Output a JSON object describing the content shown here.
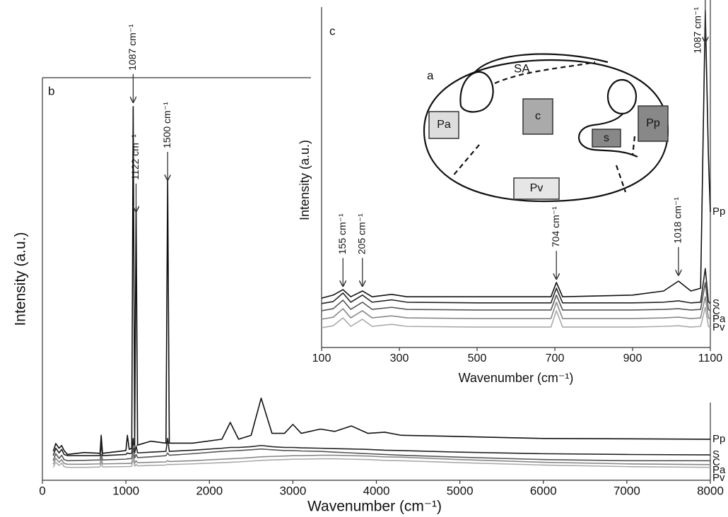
{
  "chart_data": [
    {
      "type": "line",
      "panel_label": "b",
      "x_label": "Wavenumber (cm⁻¹)",
      "y_label": "Intensity (a.u.)",
      "xlim": [
        0,
        8000
      ],
      "xticks": [
        0,
        1000,
        2000,
        3000,
        4000,
        5000,
        6000,
        7000,
        8000
      ],
      "ylim": [
        -3,
        100
      ],
      "x": [
        130,
        160,
        200,
        230,
        260,
        300,
        500,
        690,
        704,
        720,
        1000,
        1018,
        1040,
        1070,
        1087,
        1105,
        1122,
        1140,
        1300,
        1480,
        1500,
        1520,
        1800,
        2150,
        2250,
        2350,
        2500,
        2620,
        2750,
        2900,
        3000,
        3100,
        3330,
        3500,
        3700,
        3900,
        4100,
        4300,
        5000,
        6000,
        7000,
        8000
      ],
      "series": [
        {
          "name": "Pp",
          "color": "#111111",
          "values": [
            4.4,
            6.4,
            5.2,
            5.9,
            4.6,
            3.6,
            4.1,
            3.9,
            8.5,
            3.9,
            4.6,
            8.5,
            4.9,
            5.2,
            92.6,
            6,
            66.8,
            6,
            7,
            6.5,
            74.2,
            6.5,
            6.5,
            7.5,
            11.8,
            7.5,
            8.5,
            18,
            9,
            9,
            11.3,
            9,
            10.1,
            9.5,
            10.9,
            9,
            9.3,
            8.5,
            8.2,
            7.7,
            7.6,
            7.5
          ]
        },
        {
          "name": "S",
          "color": "#222222",
          "values": [
            3.3,
            5.2,
            4,
            4.9,
            3.6,
            3.3,
            3.3,
            3.3,
            6,
            3.3,
            3.6,
            4,
            3.8,
            3.9,
            7.7,
            4,
            5.8,
            4,
            4.2,
            4.4,
            7.7,
            4.4,
            4.7,
            5.2,
            5.4,
            5.4,
            5.6,
            5.9,
            5.6,
            5.4,
            5.4,
            5.3,
            5.2,
            5.1,
            5,
            4.9,
            4.7,
            4.6,
            4.2,
            3.8,
            3.6,
            3.5
          ]
        },
        {
          "name": "C",
          "color": "#555555",
          "values": [
            2,
            3.8,
            2.6,
            3.4,
            2.3,
            2,
            2.1,
            2.2,
            3.6,
            2.2,
            2.4,
            2.5,
            2.5,
            2.6,
            5.2,
            2.7,
            3.6,
            2.8,
            3,
            3.3,
            4,
            3.4,
            3.8,
            4.4,
            4.5,
            4.6,
            4.8,
            5,
            4.8,
            4.6,
            4.6,
            4.5,
            4.4,
            4.2,
            4,
            3.8,
            3.6,
            3.4,
            2.9,
            2.3,
            2,
            2
          ]
        },
        {
          "name": "Pa",
          "color": "#888888",
          "values": [
            1.1,
            2.6,
            1.6,
            2.3,
            1.3,
            1.1,
            1.1,
            1.2,
            2.6,
            1.2,
            1.3,
            1.3,
            1.3,
            1.4,
            3.6,
            1.4,
            2,
            1.5,
            1.6,
            1.7,
            2,
            1.8,
            2,
            2.4,
            2.5,
            2.6,
            2.8,
            3,
            3.1,
            3.2,
            3.3,
            3.3,
            3.4,
            3.4,
            3.3,
            3.2,
            3,
            2.9,
            2.3,
            1.6,
            1.2,
            1
          ]
        },
        {
          "name": "Pv",
          "color": "#aaaaaa",
          "values": [
            0.3,
            1.6,
            0.8,
            1.4,
            0.5,
            0.3,
            0.3,
            0.4,
            1.6,
            0.4,
            0.5,
            0.5,
            0.5,
            0.6,
            2.6,
            0.6,
            1.1,
            0.7,
            0.8,
            0.9,
            1.1,
            1,
            1.2,
            1.5,
            1.6,
            1.7,
            1.9,
            2.1,
            2.2,
            2.3,
            2.4,
            2.4,
            2.5,
            2.5,
            2.4,
            2.3,
            2.1,
            2,
            1.5,
            0.9,
            0.5,
            0.3
          ]
        }
      ],
      "annotations": [
        {
          "text": "1087 cm⁻¹",
          "x": 1087,
          "y": 93.7
        },
        {
          "text": "1122 cm⁻¹",
          "x": 1122,
          "y": 65.7
        },
        {
          "text": "1500 cm⁻¹",
          "x": 1500,
          "y": 73.8
        }
      ]
    },
    {
      "type": "line",
      "panel_label": "c",
      "x_label": "Wavenumber (cm⁻¹)",
      "y_label": "Intensity (a.u.)",
      "xlim": [
        100,
        1100
      ],
      "xticks": [
        100,
        300,
        500,
        700,
        900,
        1100
      ],
      "ylim": [
        0,
        100
      ],
      "x": [
        100,
        130,
        155,
        175,
        205,
        230,
        280,
        320,
        500,
        690,
        704,
        720,
        900,
        980,
        1018,
        1050,
        1075,
        1087,
        1095,
        1100
      ],
      "series": [
        {
          "name": "Pp",
          "color": "#111111",
          "values": [
            14.5,
            15.4,
            17,
            14.9,
            16.6,
            14.9,
            15.6,
            14.9,
            14.9,
            14.9,
            19.1,
            14.9,
            15.4,
            16.6,
            19.5,
            16.6,
            17.4,
            99,
            56.4,
            39.8
          ]
        },
        {
          "name": "S",
          "color": "#222222",
          "values": [
            12.9,
            13.5,
            16,
            13.3,
            15.4,
            13.3,
            14,
            13.3,
            13.1,
            13.1,
            17.4,
            13.1,
            13.1,
            13.3,
            13.7,
            13.1,
            13.3,
            23.2,
            13.5,
            12.9
          ]
        },
        {
          "name": "C",
          "color": "#555555",
          "values": [
            10.8,
            11.4,
            13.9,
            11.2,
            13.3,
            11.2,
            11.8,
            11.2,
            11,
            11,
            15.4,
            11,
            11,
            11.2,
            11.4,
            11,
            11.2,
            19.1,
            11.2,
            10.8
          ]
        },
        {
          "name": "Pa",
          "color": "#888888",
          "values": [
            8.3,
            8.9,
            11.4,
            8.7,
            10.8,
            8.7,
            9.3,
            8.7,
            8.5,
            8.5,
            13.3,
            8.5,
            8.5,
            8.7,
            8.9,
            8.5,
            8.7,
            14.9,
            8.7,
            8.3
          ]
        },
        {
          "name": "Pv",
          "color": "#aaaaaa",
          "values": [
            5.8,
            6.4,
            8.7,
            6.2,
            8.3,
            6.2,
            6.8,
            6.2,
            6,
            6,
            10.8,
            6,
            6,
            6.2,
            6.4,
            6,
            6.2,
            11.8,
            6.2,
            5.8
          ]
        }
      ],
      "annotations": [
        {
          "text": "155 cm⁻¹",
          "x": 155,
          "y": 18
        },
        {
          "text": "205 cm⁻¹",
          "x": 205,
          "y": 18
        },
        {
          "text": "704 cm⁻¹",
          "x": 704,
          "y": 20.1
        },
        {
          "text": "1018 cm⁻¹",
          "x": 1018,
          "y": 21.2
        },
        {
          "text": "1087 cm⁻¹",
          "x": 1087,
          "y": 89.6
        }
      ]
    }
  ],
  "diagram": {
    "label": "a",
    "regions": [
      "SA",
      "c",
      "Pa",
      "Pp",
      "s",
      "Pv"
    ]
  }
}
